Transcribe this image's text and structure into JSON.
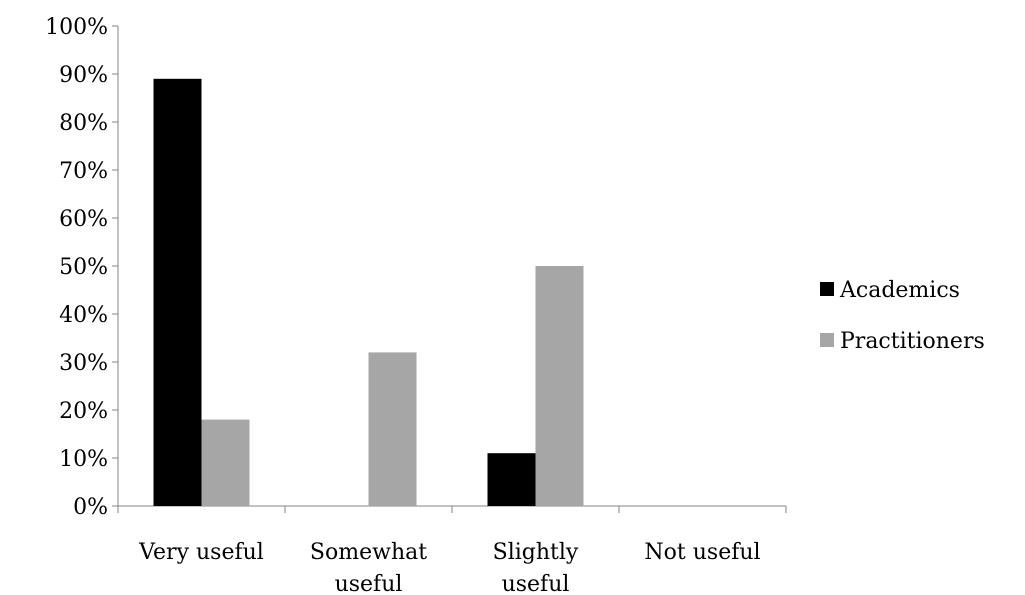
{
  "chart_data": {
    "type": "bar",
    "categories": [
      "Very useful",
      "Somewhat useful",
      "Slightly useful",
      "Not useful"
    ],
    "category_lines": [
      [
        "Very useful"
      ],
      [
        "Somewhat",
        "useful"
      ],
      [
        "Slightly",
        "useful"
      ],
      [
        "Not useful"
      ]
    ],
    "series": [
      {
        "name": "Academics",
        "values": [
          89,
          0,
          11,
          0
        ],
        "color": "#000000"
      },
      {
        "name": "Practitioners",
        "values": [
          18,
          32,
          50,
          0
        ],
        "color": "#a6a6a6"
      }
    ],
    "ylim": [
      0,
      100
    ],
    "yticks": [
      0,
      10,
      20,
      30,
      40,
      50,
      60,
      70,
      80,
      90,
      100
    ],
    "ytick_labels": [
      "0%",
      "10%",
      "20%",
      "30%",
      "40%",
      "50%",
      "60%",
      "70%",
      "80%",
      "90%",
      "100%"
    ],
    "title": "",
    "xlabel": "",
    "ylabel": "",
    "grid": false,
    "legend_position": "right"
  }
}
